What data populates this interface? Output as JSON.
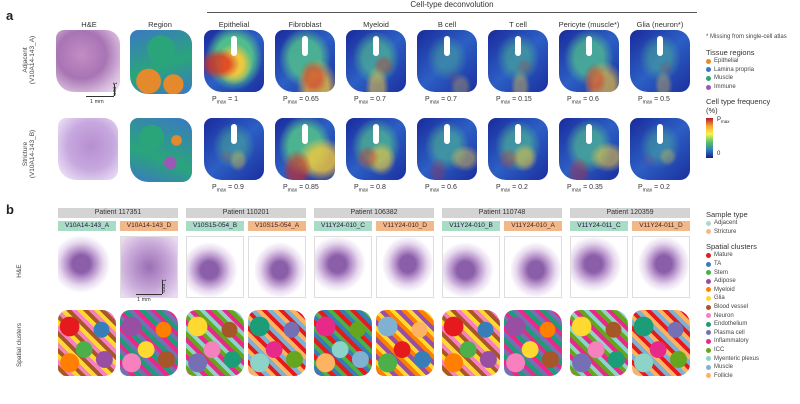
{
  "panel_a": {
    "letter": "a",
    "deconv_header": "Cell-type deconvolution",
    "col_he": "H&E",
    "col_region": "Region",
    "cell_types": [
      {
        "label": "Epithelial",
        "pmax_adj": "= 1",
        "pmax_str": "= 0.9",
        "hot_adj": 0.75,
        "hot_str": 0.15
      },
      {
        "label": "Fibroblast",
        "pmax_adj": "= 0.65",
        "pmax_str": "= 0.85",
        "hot_adj": 0.55,
        "hot_str": 0.6
      },
      {
        "label": "Myeloid",
        "pmax_adj": "= 0.7",
        "pmax_str": "= 0.8",
        "hot_adj": 0.35,
        "hot_str": 0.4
      },
      {
        "label": "B cell",
        "pmax_adj": "= 0.7",
        "pmax_str": "= 0.6",
        "hot_adj": 0.1,
        "hot_str": 0.25
      },
      {
        "label": "T cell",
        "pmax_adj": "= 0.15",
        "pmax_str": "= 0.2",
        "hot_adj": 0.2,
        "hot_str": 0.3
      },
      {
        "label": "Pericyte (muscle*)",
        "pmax_adj": "= 0.6",
        "pmax_str": "= 0.35",
        "hot_adj": 0.45,
        "hot_str": 0.35
      },
      {
        "label": "Glia (neuron*)",
        "pmax_adj": "= 0.5",
        "pmax_str": "= 0.2",
        "hot_adj": 0.15,
        "hot_str": 0.1
      }
    ],
    "pmax_prefix": "P",
    "pmax_sub": "max",
    "row_adjacent": "Adjacent\n(V10A14-143_A)",
    "row_stricture": "Stricture\n(V10A14-143_B)",
    "scale_1mm_h": "1 mm",
    "scale_1mm_v": "1 mm",
    "legend": {
      "missing_note": "* Missing from single-cell atlas",
      "tissue_title": "Tissue regions",
      "tissue_regions": [
        {
          "label": "Epithelial",
          "color": "#e58a2c"
        },
        {
          "label": "Lamina propria",
          "color": "#3b78c4"
        },
        {
          "label": "Muscle",
          "color": "#2aa57a"
        },
        {
          "label": "Immune",
          "color": "#9b59b6"
        }
      ],
      "freq_title": "Cell type frequency (%)",
      "freq_max": "P",
      "freq_max_sub": "max",
      "freq_min": "0"
    }
  },
  "panel_b": {
    "letter": "b",
    "patients": [
      {
        "name": "Patient 117351",
        "adj": "V10A14-143_A",
        "str": "V10A14-143_D"
      },
      {
        "name": "Patient 110201",
        "adj": "V10S15-054_B",
        "str": "V10S15-054_A"
      },
      {
        "name": "Patient 106382",
        "adj": "V11Y24-010_C",
        "str": "V11Y24-010_D"
      },
      {
        "name": "Patient 110748",
        "adj": "V11Y24-010_B",
        "str": "V11Y24-010_A"
      },
      {
        "name": "Patient 120359",
        "adj": "V11Y24-011_C",
        "str": "V11Y24-011_D"
      }
    ],
    "row_he": "H&E",
    "row_spatial": "Spatial clusters",
    "scale_1mm_h": "1 mm",
    "scale_1mm_v": "1 mm",
    "legend": {
      "sample_title": "Sample type",
      "sample_types": [
        {
          "label": "Adjacent",
          "color": "#a9dcc4"
        },
        {
          "label": "Stricture",
          "color": "#f1b98a"
        }
      ],
      "clusters_title": "Spatial clusters",
      "clusters": [
        {
          "label": "Mature",
          "color": "#e41a1c"
        },
        {
          "label": "TA",
          "color": "#377eb8"
        },
        {
          "label": "Stem",
          "color": "#4daf4a"
        },
        {
          "label": "Adipose",
          "color": "#984ea3"
        },
        {
          "label": "Myeloid",
          "color": "#ff7f00"
        },
        {
          "label": "Glia",
          "color": "#ffd92f"
        },
        {
          "label": "Blood vessel",
          "color": "#a65628"
        },
        {
          "label": "Neuron",
          "color": "#f781bf"
        },
        {
          "label": "Endothelium",
          "color": "#1b9e77"
        },
        {
          "label": "Plasma cell",
          "color": "#7570b3"
        },
        {
          "label": "Inflammatory",
          "color": "#e7298a"
        },
        {
          "label": "ICC",
          "color": "#66a61e"
        },
        {
          "label": "Myenteric plexus",
          "color": "#8dd3c7"
        },
        {
          "label": "Muscle",
          "color": "#80b1d3"
        },
        {
          "label": "Follicle",
          "color": "#fdb462"
        }
      ]
    }
  }
}
